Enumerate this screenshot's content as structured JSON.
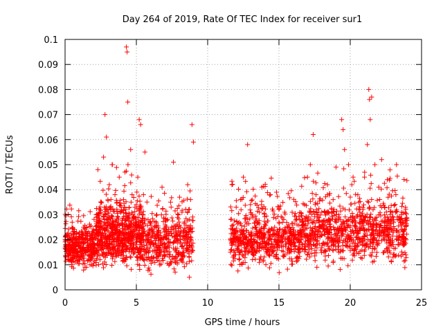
{
  "chart_data": {
    "type": "scatter",
    "title": "Day 264 of 2019, Rate Of TEC Index for receiver sur1",
    "xlabel": "GPS time / hours",
    "ylabel": "ROTI / TECUs",
    "xlim": [
      0,
      25
    ],
    "ylim": [
      0,
      0.1
    ],
    "xticks": [
      0,
      5,
      10,
      15,
      20,
      25
    ],
    "xtick_labels": [
      "0",
      "5",
      "10",
      "15",
      "20",
      "25"
    ],
    "yticks": [
      0,
      0.01,
      0.02,
      0.03,
      0.04,
      0.05,
      0.06,
      0.07,
      0.08,
      0.09,
      0.1
    ],
    "ytick_labels": [
      "0",
      "0.01",
      "0.02",
      "0.03",
      "0.04",
      "0.05",
      "0.06",
      "0.07",
      "0.08",
      "0.09",
      "0.1"
    ],
    "grid": true,
    "marker": "+",
    "color": "#ff0000",
    "series": [
      {
        "name": "ROTI",
        "points": [
          [
            0.1,
            0.016
          ],
          [
            0.2,
            0.012
          ],
          [
            0.3,
            0.021
          ],
          [
            0.4,
            0.014
          ],
          [
            0.5,
            0.027
          ],
          [
            0.6,
            0.018
          ],
          [
            0.7,
            0.011
          ],
          [
            0.8,
            0.023
          ],
          [
            0.9,
            0.015
          ],
          [
            1.0,
            0.019
          ],
          [
            1.1,
            0.013
          ],
          [
            1.2,
            0.022
          ],
          [
            1.3,
            0.017
          ],
          [
            1.4,
            0.009
          ],
          [
            1.5,
            0.025
          ],
          [
            1.6,
            0.014
          ],
          [
            1.7,
            0.018
          ],
          [
            1.8,
            0.012
          ],
          [
            1.9,
            0.02
          ],
          [
            2.0,
            0.016
          ],
          [
            2.1,
            0.021
          ],
          [
            2.2,
            0.03
          ],
          [
            2.3,
            0.048
          ],
          [
            2.4,
            0.024
          ],
          [
            2.5,
            0.035
          ],
          [
            2.6,
            0.019
          ],
          [
            2.7,
            0.053
          ],
          [
            2.8,
            0.07
          ],
          [
            2.9,
            0.061
          ],
          [
            3.0,
            0.028
          ],
          [
            3.1,
            0.042
          ],
          [
            3.2,
            0.032
          ],
          [
            3.3,
            0.05
          ],
          [
            3.4,
            0.022
          ],
          [
            3.5,
            0.038
          ],
          [
            3.6,
            0.018
          ],
          [
            3.7,
            0.026
          ],
          [
            3.8,
            0.045
          ],
          [
            3.9,
            0.031
          ],
          [
            4.0,
            0.017
          ],
          [
            4.1,
            0.036
          ],
          [
            4.2,
            0.047
          ],
          [
            4.3,
            0.097
          ],
          [
            4.35,
            0.095
          ],
          [
            4.4,
            0.075
          ],
          [
            4.5,
            0.029
          ],
          [
            4.6,
            0.056
          ],
          [
            4.7,
            0.038
          ],
          [
            4.8,
            0.021
          ],
          [
            4.9,
            0.033
          ],
          [
            5.0,
            0.018
          ],
          [
            5.1,
            0.045
          ],
          [
            5.2,
            0.068
          ],
          [
            5.3,
            0.066
          ],
          [
            5.4,
            0.025
          ],
          [
            5.5,
            0.038
          ],
          [
            5.6,
            0.055
          ],
          [
            5.7,
            0.016
          ],
          [
            5.8,
            0.022
          ],
          [
            5.9,
            0.012
          ],
          [
            6.0,
            0.018
          ],
          [
            6.2,
            0.013
          ],
          [
            6.4,
            0.021
          ],
          [
            6.6,
            0.015
          ],
          [
            6.8,
            0.041
          ],
          [
            7.0,
            0.017
          ],
          [
            7.2,
            0.028
          ],
          [
            7.4,
            0.035
          ],
          [
            7.6,
            0.051
          ],
          [
            7.8,
            0.022
          ],
          [
            8.0,
            0.015
          ],
          [
            8.2,
            0.031
          ],
          [
            8.4,
            0.019
          ],
          [
            8.6,
            0.042
          ],
          [
            8.8,
            0.036
          ],
          [
            8.9,
            0.066
          ],
          [
            9.0,
            0.059
          ],
          [
            11.6,
            0.02
          ],
          [
            11.7,
            0.042
          ],
          [
            11.8,
            0.026
          ],
          [
            11.9,
            0.015
          ],
          [
            12.0,
            0.033
          ],
          [
            12.1,
            0.021
          ],
          [
            12.2,
            0.018
          ],
          [
            12.3,
            0.036
          ],
          [
            12.4,
            0.024
          ],
          [
            12.5,
            0.045
          ],
          [
            12.6,
            0.017
          ],
          [
            12.7,
            0.029
          ],
          [
            12.8,
            0.058
          ],
          [
            12.9,
            0.019
          ],
          [
            13.0,
            0.034
          ],
          [
            13.2,
            0.014
          ],
          [
            13.4,
            0.025
          ],
          [
            13.6,
            0.018
          ],
          [
            13.8,
            0.041
          ],
          [
            14.0,
            0.021
          ],
          [
            14.2,
            0.016
          ],
          [
            14.4,
            0.038
          ],
          [
            14.6,
            0.022
          ],
          [
            14.8,
            0.014
          ],
          [
            15.0,
            0.027
          ],
          [
            15.2,
            0.019
          ],
          [
            15.4,
            0.031
          ],
          [
            15.6,
            0.016
          ],
          [
            15.8,
            0.024
          ],
          [
            16.0,
            0.02
          ],
          [
            16.2,
            0.028
          ],
          [
            16.4,
            0.016
          ],
          [
            16.6,
            0.023
          ],
          [
            16.8,
            0.034
          ],
          [
            17.0,
            0.045
          ],
          [
            17.2,
            0.05
          ],
          [
            17.4,
            0.062
          ],
          [
            17.6,
            0.038
          ],
          [
            17.8,
            0.025
          ],
          [
            18.0,
            0.031
          ],
          [
            18.2,
            0.022
          ],
          [
            18.4,
            0.042
          ],
          [
            18.6,
            0.028
          ],
          [
            18.8,
            0.036
          ],
          [
            19.0,
            0.049
          ],
          [
            19.2,
            0.03
          ],
          [
            19.4,
            0.068
          ],
          [
            19.5,
            0.064
          ],
          [
            19.6,
            0.056
          ],
          [
            19.8,
            0.025
          ],
          [
            20.0,
            0.037
          ],
          [
            20.2,
            0.045
          ],
          [
            20.4,
            0.021
          ],
          [
            20.6,
            0.035
          ],
          [
            20.8,
            0.028
          ],
          [
            21.0,
            0.045
          ],
          [
            21.2,
            0.058
          ],
          [
            21.3,
            0.08
          ],
          [
            21.35,
            0.076
          ],
          [
            21.4,
            0.068
          ],
          [
            21.5,
            0.077
          ],
          [
            21.6,
            0.032
          ],
          [
            21.8,
            0.025
          ],
          [
            22.0,
            0.041
          ],
          [
            22.2,
            0.052
          ],
          [
            22.4,
            0.033
          ],
          [
            22.6,
            0.044
          ],
          [
            22.8,
            0.019
          ],
          [
            23.0,
            0.029
          ],
          [
            23.2,
            0.038
          ],
          [
            23.4,
            0.023
          ],
          [
            23.6,
            0.031
          ],
          [
            23.8,
            0.018
          ],
          [
            23.9,
            0.014
          ]
        ]
      }
    ],
    "density_clusters": [
      {
        "x_range": [
          0,
          2.2
        ],
        "y_center": 0.017,
        "y_spread": 0.006,
        "count": 380
      },
      {
        "x_range": [
          2.2,
          5.5
        ],
        "y_center": 0.022,
        "y_spread": 0.009,
        "count": 720
      },
      {
        "x_range": [
          5.5,
          9.0
        ],
        "y_center": 0.019,
        "y_spread": 0.008,
        "count": 420
      },
      {
        "x_range": [
          11.6,
          16.5
        ],
        "y_center": 0.02,
        "y_spread": 0.008,
        "count": 620
      },
      {
        "x_range": [
          16.5,
          24.0
        ],
        "y_center": 0.023,
        "y_spread": 0.009,
        "count": 900
      }
    ]
  }
}
